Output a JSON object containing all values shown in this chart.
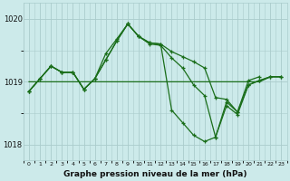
{
  "title": "Graphe pression niveau de la mer (hPa)",
  "bg_color": "#cceaea",
  "grid_color": "#aacccc",
  "line_color": "#1a6e1a",
  "x_values": [
    0,
    1,
    2,
    3,
    4,
    5,
    6,
    7,
    8,
    9,
    10,
    11,
    12,
    13,
    14,
    15,
    16,
    17,
    18,
    19,
    20,
    21,
    22,
    23
  ],
  "line1_x": [
    0,
    1,
    2,
    3,
    4,
    5,
    6,
    7,
    8,
    9,
    10,
    11,
    12,
    13,
    14,
    15,
    16,
    17,
    18,
    19,
    20,
    21
  ],
  "line1_y": [
    1018.85,
    1019.05,
    1019.25,
    1019.15,
    1019.15,
    1018.88,
    1019.05,
    1019.45,
    1019.68,
    1019.92,
    1019.72,
    1019.6,
    1019.58,
    1019.38,
    1019.22,
    1018.95,
    1018.78,
    1018.12,
    1018.68,
    1018.52,
    1019.02,
    1019.08
  ],
  "line2_x": [
    0,
    1,
    2,
    3,
    4,
    5,
    6,
    7,
    8,
    9,
    10,
    11,
    12,
    13,
    14,
    15,
    16,
    17,
    18,
    19,
    20,
    21,
    22,
    23
  ],
  "line2_y": [
    1019.0,
    1019.0,
    1019.0,
    1019.0,
    1019.0,
    1019.0,
    1019.0,
    1019.0,
    1019.0,
    1019.0,
    1019.0,
    1019.0,
    1019.0,
    1019.0,
    1019.0,
    1019.0,
    1019.0,
    1019.0,
    1019.0,
    1019.0,
    1019.0,
    1019.0,
    1019.08,
    1019.08
  ],
  "line3_x": [
    0,
    1,
    2,
    3,
    4,
    5,
    6,
    7,
    8,
    9,
    10,
    11,
    12,
    13,
    14,
    15,
    16,
    17,
    18,
    19,
    20,
    21,
    22,
    23
  ],
  "line3_y": [
    1018.85,
    1019.05,
    1019.25,
    1019.15,
    1019.15,
    1018.88,
    1019.05,
    1019.35,
    1019.65,
    1019.92,
    1019.72,
    1019.62,
    1019.6,
    1018.55,
    1018.35,
    1018.15,
    1018.05,
    1018.12,
    1018.62,
    1018.48,
    1018.95,
    1019.02,
    1019.08,
    1019.08
  ],
  "line4_x": [
    0,
    1,
    2,
    3,
    4,
    5,
    6,
    7,
    8,
    9,
    10,
    11,
    12,
    13,
    14,
    15,
    16,
    17,
    18,
    19,
    20,
    21,
    22,
    23
  ],
  "line4_y": [
    1018.85,
    1019.05,
    1019.25,
    1019.15,
    1019.15,
    1018.88,
    1019.05,
    1019.35,
    1019.65,
    1019.92,
    1019.72,
    1019.62,
    1019.6,
    1019.48,
    1019.4,
    1019.32,
    1019.22,
    1018.75,
    1018.72,
    1018.52,
    1018.95,
    1019.02,
    1019.08,
    1019.08
  ],
  "ylim": [
    1017.75,
    1020.25
  ],
  "yticks": [
    1018,
    1019,
    1020
  ],
  "ylabel_fontsize": 6,
  "xlabel_fontsize": 6.5,
  "title_fontsize": 6.5
}
